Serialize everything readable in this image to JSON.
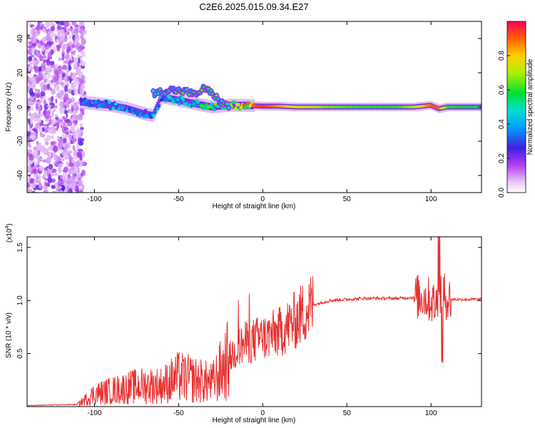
{
  "title": "C2E6.2025.015.09.34.E27",
  "colors": {
    "snr_line": "#e83030",
    "axis": "#000000"
  },
  "chart_data": [
    {
      "type": "heatmap",
      "xlabel": "Height of straight line (km)",
      "ylabel": "Frequency (Hz)",
      "xlim": [
        -140,
        130
      ],
      "ylim": [
        -50,
        50
      ],
      "xticks": [
        -100,
        -50,
        0,
        50,
        100
      ],
      "xtick_labels": [
        "-100",
        "-50",
        "0",
        "50",
        "100"
      ],
      "yticks": [
        -40,
        -20,
        0,
        20,
        40
      ],
      "ytick_labels": [
        "-40",
        "-20",
        "0",
        "20",
        "40"
      ],
      "colorbar": {
        "label": "Normalized spectral amplitude",
        "range": [
          0,
          1
        ],
        "ticks": [
          0.0,
          0.2,
          0.4,
          0.6,
          0.8
        ],
        "tick_labels": [
          "0.0",
          "0.2",
          "0.4",
          "0.6",
          "0.8"
        ]
      },
      "ridge": {
        "x": [
          -108,
          -100,
          -90,
          -80,
          -70,
          -65,
          -60,
          -50,
          -40,
          -30,
          -20,
          -10,
          0,
          10,
          20,
          40,
          60,
          80,
          90,
          100,
          105,
          110,
          130
        ],
        "frequency": [
          3,
          2,
          1,
          -1,
          -4,
          -5,
          6,
          4,
          2,
          0,
          1,
          1,
          0.5,
          0.5,
          0,
          0,
          0,
          0,
          0,
          1,
          -1,
          0,
          0
        ],
        "amplitude": [
          0.35,
          0.4,
          0.45,
          0.4,
          0.35,
          0.45,
          0.4,
          0.5,
          0.55,
          0.6,
          0.7,
          0.85,
          0.95,
          0.85,
          0.75,
          0.65,
          0.6,
          0.6,
          0.7,
          0.9,
          0.9,
          0.6,
          0.55
        ]
      },
      "upper_branch": {
        "x": [
          -65,
          -55,
          -45,
          -40,
          -35,
          -30,
          -25,
          -20
        ],
        "frequency": [
          8,
          10,
          9,
          7,
          11,
          8,
          3,
          0
        ]
      }
    },
    {
      "type": "line",
      "xlabel": "Height of straight line (km)",
      "ylabel": "SNR (10 * v/v)",
      "y_multiplier_label": "(x10",
      "y_multiplier_exp": "4",
      "y_multiplier_close": ")",
      "xlim": [
        -140,
        130
      ],
      "ylim": [
        0,
        1.6
      ],
      "xticks": [
        -100,
        -50,
        0,
        50,
        100
      ],
      "xtick_labels": [
        "-100",
        "-50",
        "0",
        "50",
        "100"
      ],
      "yticks": [
        0.5,
        1.0,
        1.5
      ],
      "ytick_labels": [
        "0.5",
        "1.0",
        "1.5"
      ],
      "series": [
        {
          "x": [
            -140,
            -110,
            -100,
            -90,
            -80,
            -70,
            -60,
            -50,
            -40,
            -30,
            -20,
            -15,
            -10,
            0,
            10,
            20,
            25,
            30,
            40,
            60,
            80,
            90,
            95,
            100,
            103,
            105,
            108,
            110,
            120,
            130
          ],
          "values": [
            0.01,
            0.02,
            0.12,
            0.15,
            0.18,
            0.2,
            0.2,
            0.28,
            0.25,
            0.22,
            0.45,
            0.55,
            0.6,
            0.65,
            0.7,
            0.82,
            0.9,
            0.96,
            1.0,
            1.02,
            1.02,
            1.03,
            1.04,
            1.0,
            0.95,
            1.1,
            1.05,
            1.01,
            1.01,
            1.01
          ]
        }
      ]
    }
  ]
}
